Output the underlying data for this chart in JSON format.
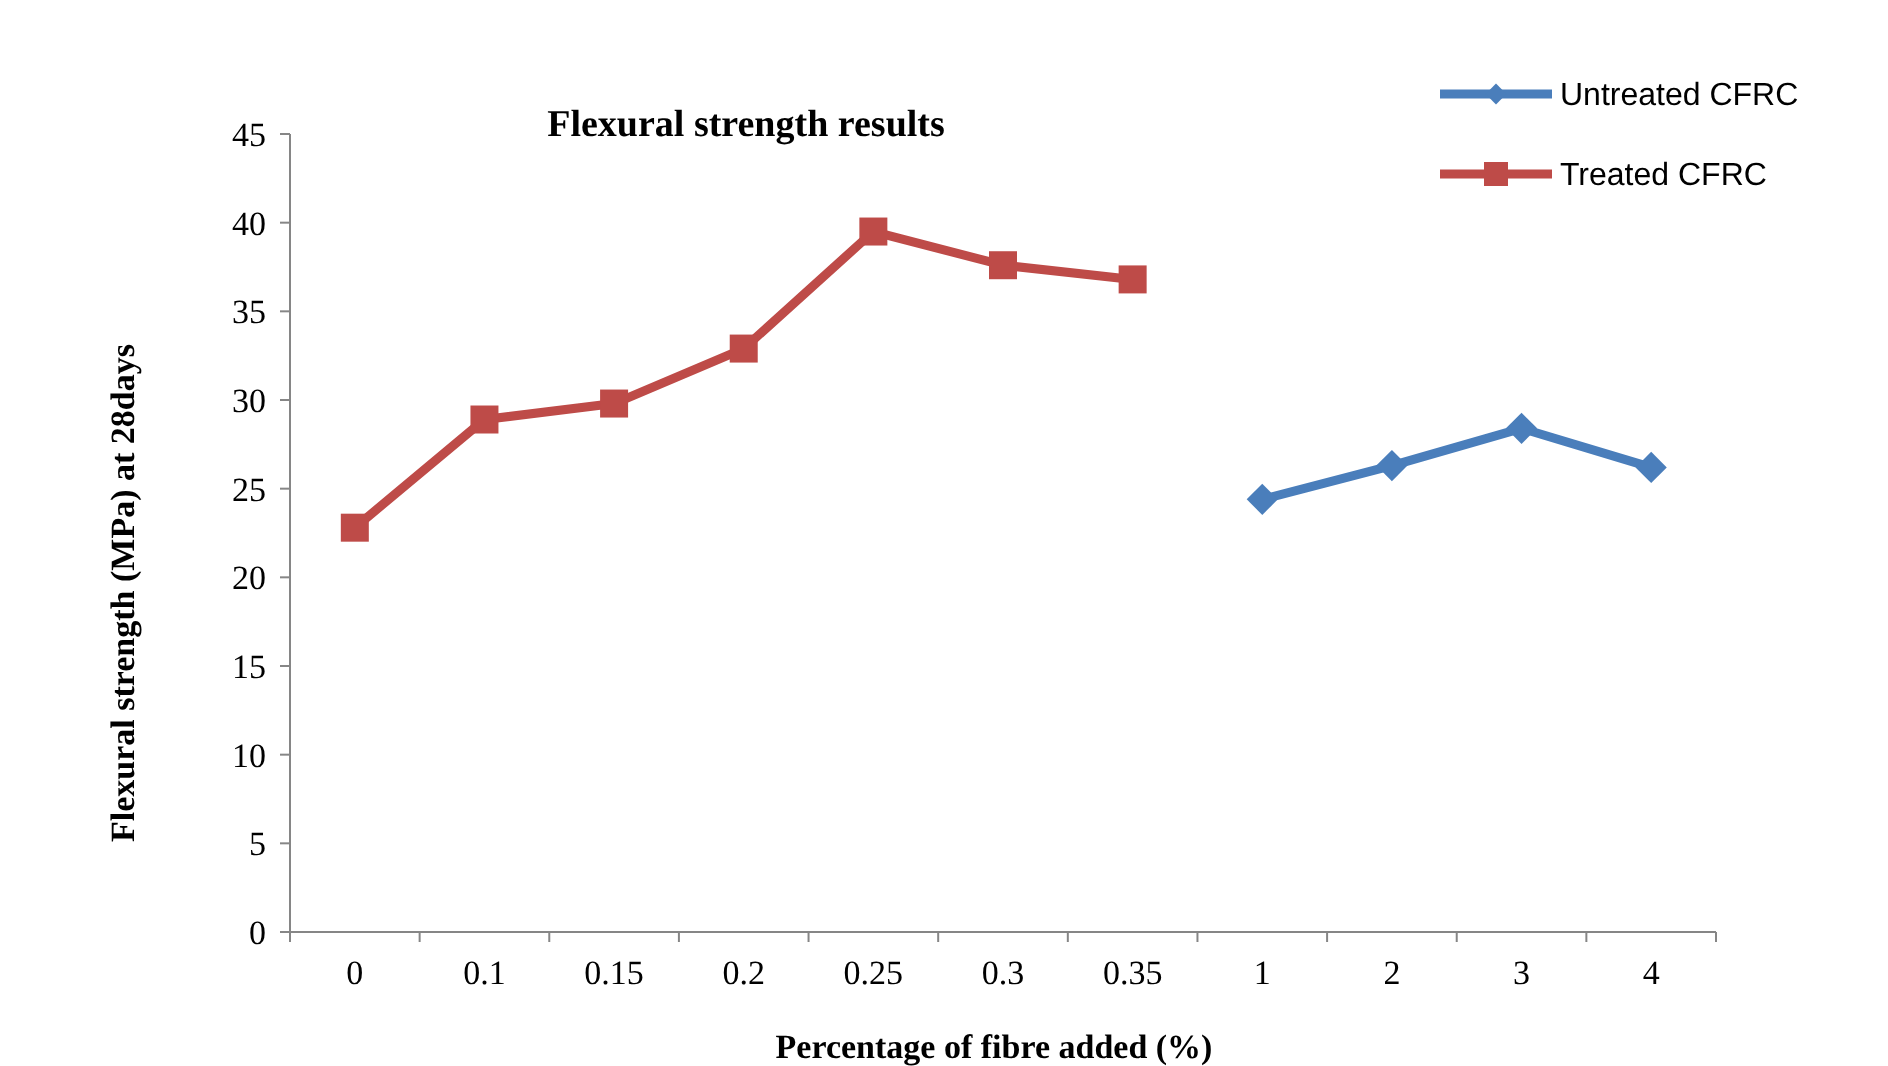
{
  "chart_data": {
    "type": "line",
    "title": "Flexural strength results",
    "xlabel": "Percentage of fibre added (%)",
    "ylabel": "Flexural strength (MPa) at 28days",
    "categories": [
      "0",
      "0.1",
      "0.15",
      "0.2",
      "0.25",
      "0.3",
      "0.35",
      "1",
      "2",
      "3",
      "4"
    ],
    "series": [
      {
        "name": "Untreated CFRC",
        "color": "#4a7ebb",
        "marker": "diamond",
        "values": [
          null,
          null,
          null,
          null,
          null,
          null,
          null,
          24.4,
          26.3,
          28.4,
          26.2
        ]
      },
      {
        "name": "Treated CFRC",
        "color": "#be4b48",
        "marker": "square",
        "values": [
          22.8,
          28.9,
          29.8,
          32.9,
          39.5,
          37.6,
          36.8,
          null,
          null,
          null,
          null
        ]
      }
    ],
    "ylim": [
      0,
      45
    ],
    "yticks": [
      0,
      5,
      10,
      15,
      20,
      25,
      30,
      35,
      40,
      45
    ],
    "grid": false,
    "legend": "top right"
  }
}
